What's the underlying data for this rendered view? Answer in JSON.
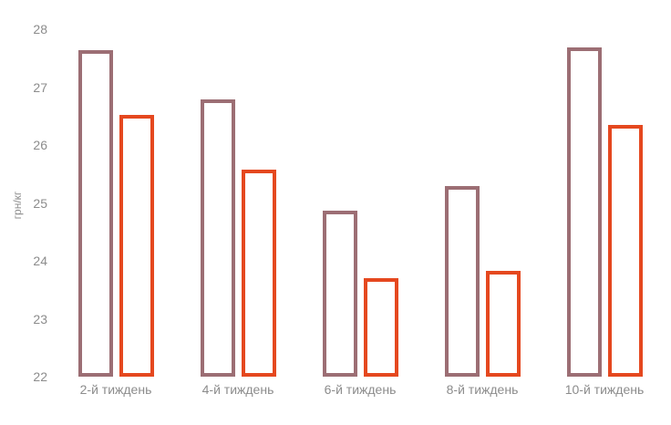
{
  "chart_data": {
    "type": "bar",
    "title": "",
    "xlabel": "",
    "ylabel": "грн/кг",
    "categories": [
      "2-й тиждень",
      "4-й тиждень",
      "6-й тиждень",
      "8-й тиждень",
      "10-й тиждень"
    ],
    "series": [
      {
        "name": "series-1",
        "color": "#9c6e74",
        "values": [
          27.63,
          26.79,
          24.87,
          25.29,
          27.68
        ]
      },
      {
        "name": "series-2",
        "color": "#e5481f",
        "values": [
          26.52,
          25.57,
          23.7,
          23.83,
          26.35
        ]
      }
    ],
    "ylim": [
      22,
      28
    ],
    "yticks": [
      22,
      23,
      24,
      25,
      26,
      27,
      28
    ],
    "grid": false,
    "legend": "none",
    "bar_style": "outlined",
    "text_color": "#8c8c8c",
    "background_color": "#ffffff"
  }
}
